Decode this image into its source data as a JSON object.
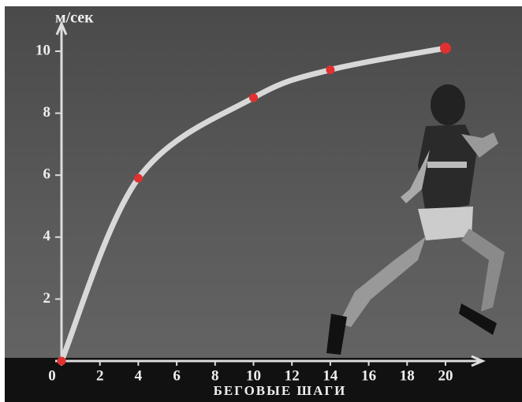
{
  "chart_data": {
    "type": "line",
    "y_label": "м/сек",
    "x_label": "БЕГОВЫЕ ШАГИ",
    "x": [
      0,
      4,
      10,
      14,
      20
    ],
    "values": [
      0,
      5.9,
      8.5,
      9.4,
      10.1
    ],
    "line_color": "#d8d8d8",
    "color": "#e03030",
    "xlim": [
      0,
      22
    ],
    "ylim": [
      0,
      11
    ],
    "xticks": [
      0,
      2,
      4,
      6,
      8,
      10,
      12,
      14,
      16,
      18,
      20
    ],
    "yticks": [
      2,
      4,
      6,
      8,
      10
    ]
  }
}
